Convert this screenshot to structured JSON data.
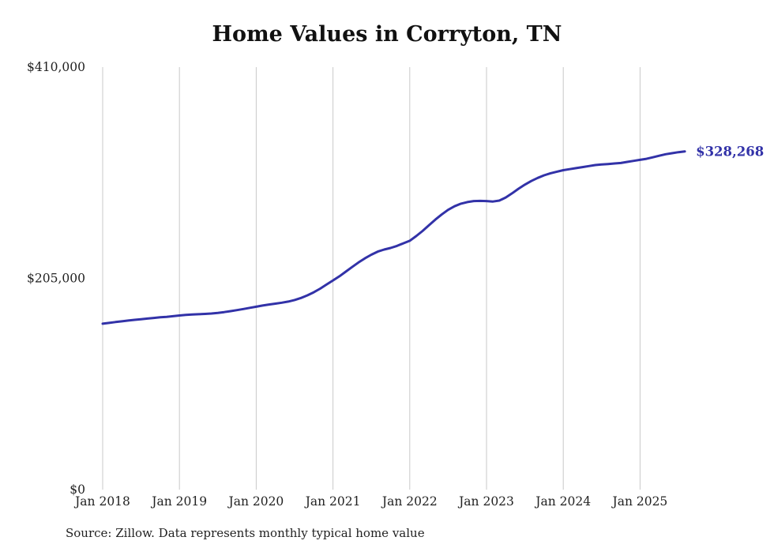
{
  "chart_data": {
    "type": "line",
    "title": "Home Values in Corryton, TN",
    "source": "Source: Zillow. Data represents monthly typical home value",
    "end_label": "$328,268",
    "end_value": 328268,
    "x_start": "2018-01",
    "x_end": "2025-08",
    "x_tick_labels": [
      "Jan 2018",
      "Jan 2019",
      "Jan 2020",
      "Jan 2021",
      "Jan 2022",
      "Jan 2023",
      "Jan 2024",
      "Jan 2025"
    ],
    "y_tick_labels": [
      "$0",
      "$205,000",
      "$410,000"
    ],
    "y_ticks": [
      0,
      205000,
      410000
    ],
    "ylim": [
      0,
      410000
    ],
    "grid": "vertical-only",
    "legend": "none",
    "series": [
      {
        "name": "Monthly typical home value",
        "values": [
          161000,
          161800,
          162600,
          163300,
          164100,
          164800,
          165400,
          166000,
          166600,
          167200,
          167700,
          168300,
          169000,
          169500,
          169900,
          170200,
          170500,
          170900,
          171500,
          172300,
          173200,
          174200,
          175300,
          176400,
          177500,
          178600,
          179600,
          180500,
          181400,
          182500,
          184000,
          186000,
          188500,
          191500,
          195000,
          199000,
          203000,
          207000,
          211500,
          216000,
          220500,
          224500,
          228000,
          231000,
          233000,
          234500,
          236500,
          239000,
          241500,
          246000,
          251000,
          256500,
          262000,
          267000,
          271500,
          275000,
          277500,
          279000,
          280000,
          280200,
          280000,
          279600,
          280500,
          283500,
          287500,
          292000,
          296000,
          299500,
          302500,
          305000,
          307000,
          308500,
          310000,
          311000,
          312000,
          313000,
          314000,
          315000,
          315500,
          316000,
          316500,
          317000,
          318000,
          319000,
          320000,
          321000,
          322500,
          324000,
          325500,
          326500,
          327500,
          328268
        ]
      }
    ],
    "colors": {
      "line": "#3232a8",
      "end_label": "#3232a8",
      "grid": "#c9c9c9",
      "axis_text": "#222222"
    }
  }
}
